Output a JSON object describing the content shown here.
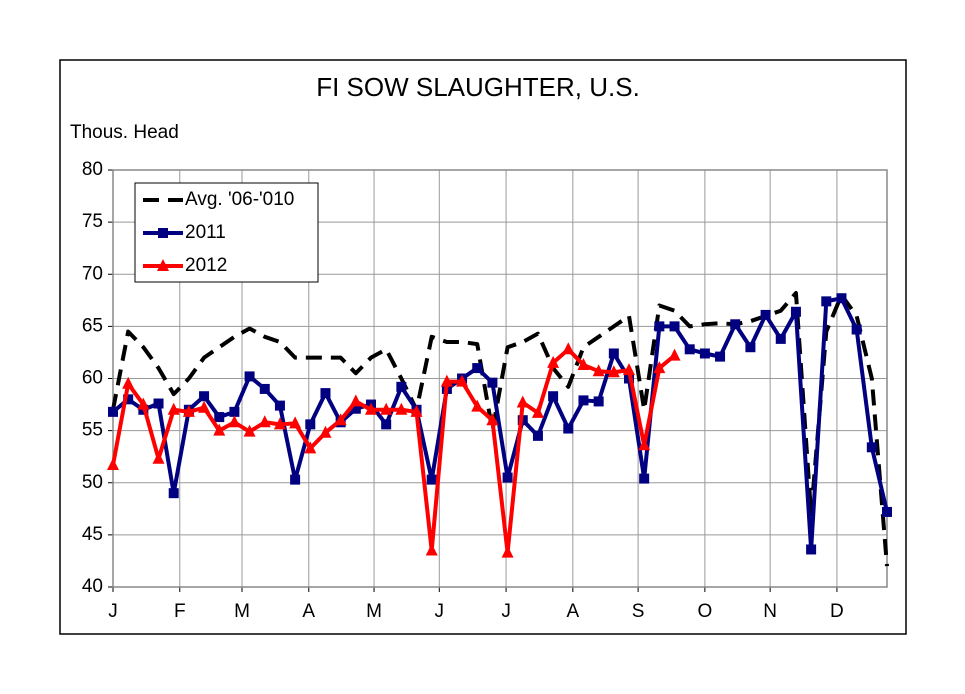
{
  "chart_data": {
    "type": "line",
    "title": "FI SOW SLAUGHTER, U.S.",
    "y_label": "Thous. Head",
    "x": [
      1,
      2,
      3,
      4,
      5,
      6,
      7,
      8,
      9,
      10,
      11,
      12,
      13,
      14,
      15,
      16,
      17,
      18,
      19,
      20,
      21,
      22,
      23,
      24,
      25,
      26,
      27,
      28,
      29,
      30,
      31,
      32,
      33,
      34,
      35,
      36,
      37,
      38,
      39,
      40,
      41,
      42,
      43,
      44,
      45,
      46,
      47,
      48,
      49,
      50,
      51,
      52
    ],
    "xlim": [
      1,
      52
    ],
    "xticks": [
      {
        "value": 1,
        "label": "J"
      },
      {
        "value": 5.4,
        "label": "F"
      },
      {
        "value": 9.5,
        "label": "M"
      },
      {
        "value": 13.9,
        "label": "A"
      },
      {
        "value": 18.2,
        "label": "M"
      },
      {
        "value": 22.5,
        "label": "J"
      },
      {
        "value": 26.9,
        "label": "J"
      },
      {
        "value": 31.3,
        "label": "A"
      },
      {
        "value": 35.6,
        "label": "S"
      },
      {
        "value": 40.0,
        "label": "O"
      },
      {
        "value": 44.3,
        "label": "N"
      },
      {
        "value": 48.7,
        "label": "D"
      }
    ],
    "ylim": [
      40,
      80
    ],
    "yticks": [
      40,
      45,
      50,
      55,
      60,
      65,
      70,
      75,
      80
    ],
    "grid": true,
    "legend": "upper left",
    "series": [
      {
        "name": "Avg. '06-'010",
        "color": "#000000",
        "style": "dashed",
        "values": [
          57,
          64.5,
          63,
          61,
          58.5,
          60,
          62,
          63,
          64,
          64.8,
          64,
          63.5,
          62,
          62,
          62,
          62,
          60.5,
          62,
          62.8,
          60,
          57,
          64,
          63.5,
          63.5,
          63.3,
          55,
          63,
          63.5,
          64.3,
          61,
          59.2,
          63,
          64,
          65,
          66,
          57,
          67,
          66.5,
          65,
          65.2,
          65.3,
          65.2,
          65.5,
          66,
          66.5,
          68.2,
          47,
          64.5,
          68,
          66,
          60,
          42
        ]
      },
      {
        "name": "2011",
        "color": "#000080",
        "marker": "square",
        "values": [
          56.8,
          58,
          57,
          57.6,
          49,
          57,
          58.3,
          56.3,
          56.8,
          60.2,
          59,
          57.4,
          50.3,
          55.6,
          58.6,
          55.8,
          57.1,
          57.5,
          55.6,
          59.2,
          57,
          50.3,
          59,
          60,
          61,
          59.6,
          50.5,
          56,
          54.5,
          58.3,
          55.2,
          57.9,
          57.8,
          62.4,
          60,
          50.4,
          65,
          65,
          62.8,
          62.4,
          62.1,
          65.2,
          63,
          66.1,
          63.8,
          66.4,
          43.6,
          67.4,
          67.7,
          64.7,
          53.4,
          47.2
        ]
      },
      {
        "name": "2012",
        "color": "#ff0000",
        "marker": "triangle",
        "values": [
          51.7,
          59.5,
          57.5,
          52.3,
          57,
          56.8,
          57.2,
          55,
          55.8,
          54.9,
          55.8,
          55.6,
          55.7,
          53.3,
          54.8,
          56,
          57.8,
          57,
          57,
          57,
          56.8,
          43.5,
          59.7,
          59.7,
          57.3,
          56,
          43.3,
          57.7,
          56.7,
          61.5,
          62.8,
          61.3,
          60.7,
          60.6,
          60.8,
          53.6,
          61,
          62.2,
          null,
          null,
          null,
          null,
          null,
          null,
          null,
          null,
          null,
          null,
          null,
          null,
          null,
          null
        ]
      }
    ]
  }
}
